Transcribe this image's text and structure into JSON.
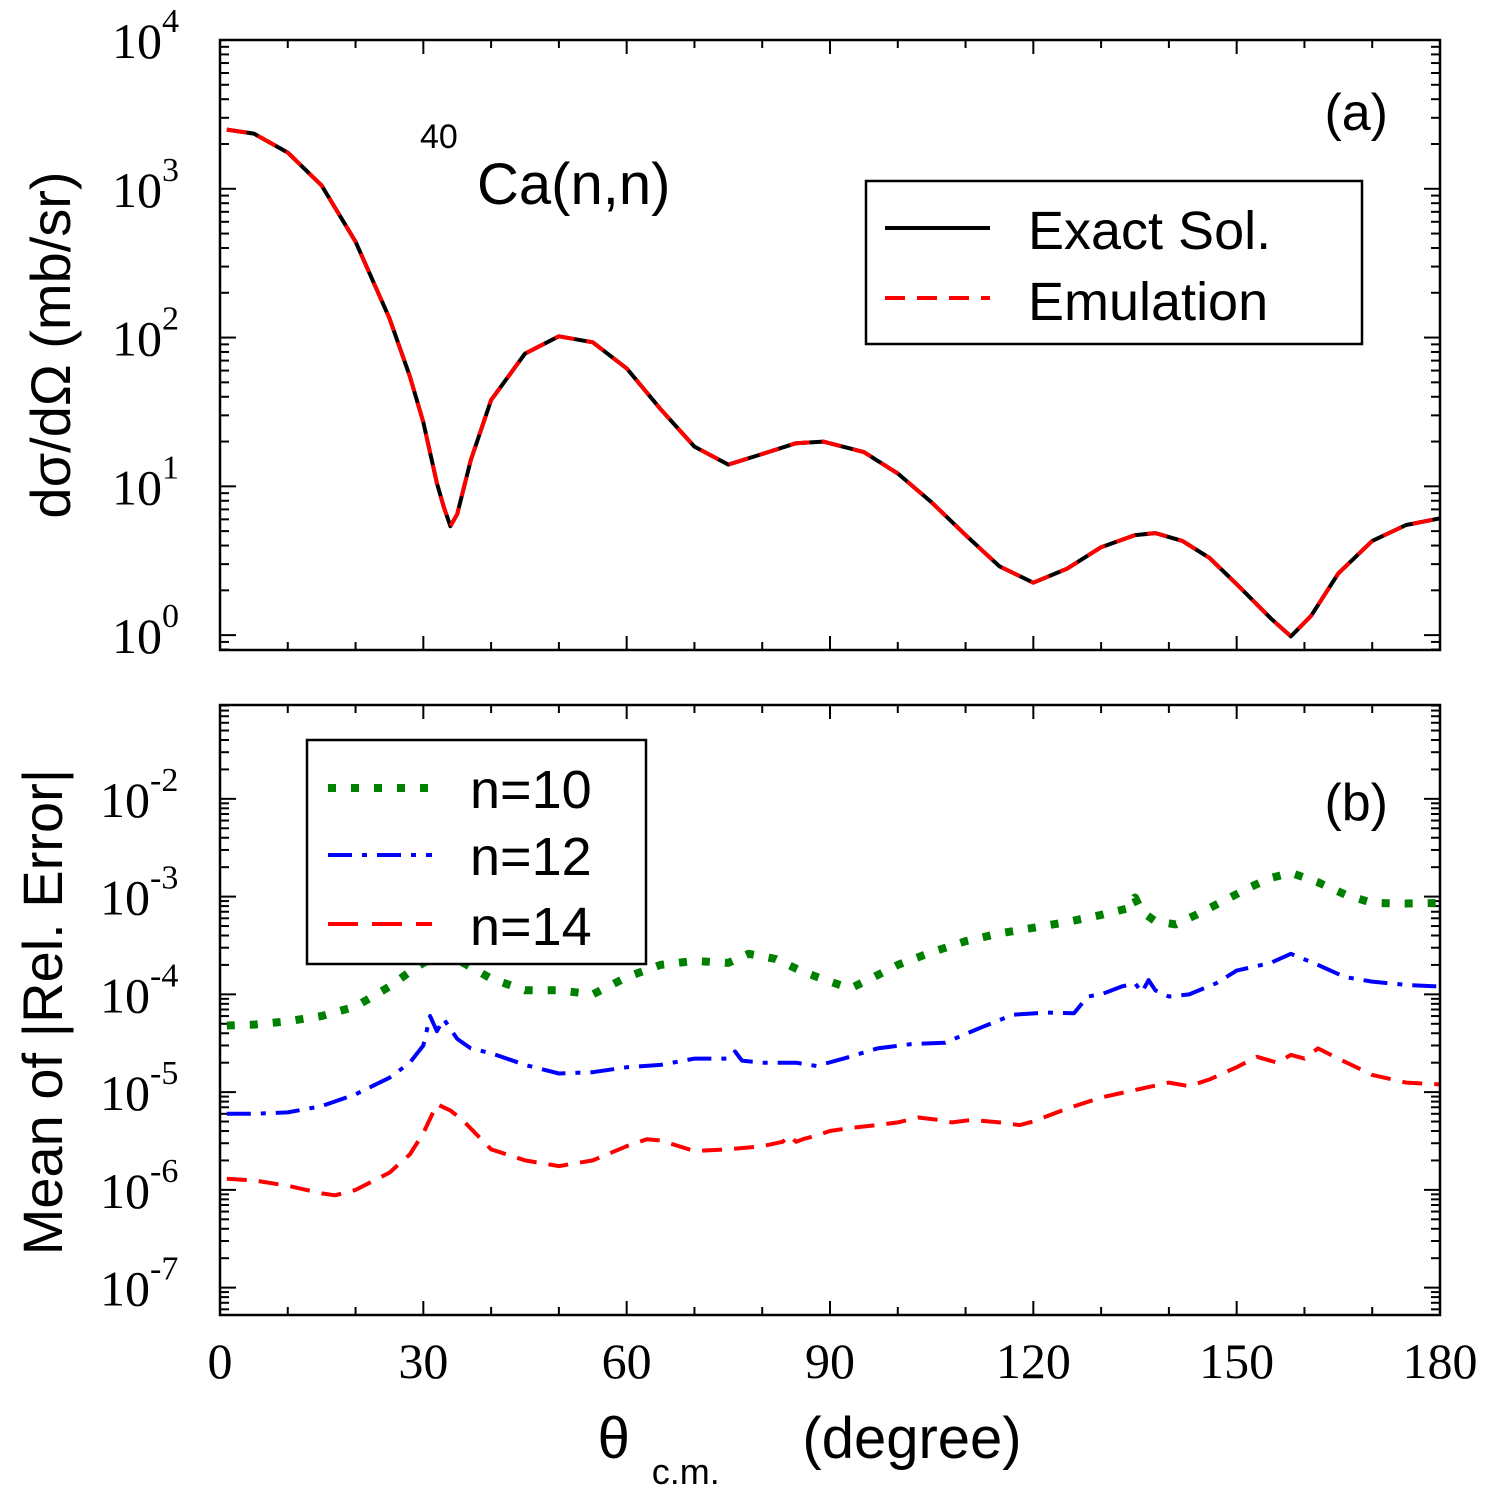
{
  "chart_data": [
    {
      "type": "line",
      "panel": "top",
      "panel_label": "(a)",
      "annotation": {
        "mass": "40",
        "reaction": "Ca(n,n)"
      },
      "ylabel": "dσ/dΩ (mb/sr)",
      "xlim": [
        0,
        180
      ],
      "ylim_log10": [
        -0.1,
        4
      ],
      "yscale": "log",
      "y_ticks": [
        {
          "base": "10",
          "exp": "0"
        },
        {
          "base": "10",
          "exp": "1"
        },
        {
          "base": "10",
          "exp": "2"
        },
        {
          "base": "10",
          "exp": "3"
        },
        {
          "base": "10",
          "exp": "4"
        }
      ],
      "legend_position": "top-right",
      "series": [
        {
          "name": "Exact Sol.",
          "color": "#000000",
          "style": "solid",
          "x": [
            1,
            5,
            10,
            15,
            20,
            25,
            28,
            30,
            32,
            33,
            34,
            35,
            37,
            40,
            45,
            50,
            55,
            60,
            65,
            70,
            75,
            80,
            85,
            89,
            95,
            100,
            105,
            110,
            115,
            120,
            125,
            130,
            135,
            138,
            142,
            146,
            150,
            155,
            158,
            161,
            165,
            170,
            175,
            180
          ],
          "y": [
            2500,
            2350,
            1750,
            1050,
            440,
            135,
            55,
            27,
            10.5,
            7.3,
            5.4,
            6.5,
            15,
            38,
            78,
            102,
            93,
            62,
            33,
            18.5,
            14,
            16.5,
            19.5,
            20,
            17,
            12.2,
            7.8,
            4.7,
            2.9,
            2.25,
            2.8,
            3.9,
            4.7,
            4.85,
            4.3,
            3.3,
            2.2,
            1.3,
            0.98,
            1.35,
            2.6,
            4.3,
            5.5,
            6.1
          ]
        },
        {
          "name": "Emulation",
          "color": "#ff0000",
          "style": "dashed",
          "x": [
            1,
            5,
            10,
            15,
            20,
            25,
            28,
            30,
            32,
            33,
            34,
            35,
            37,
            40,
            45,
            50,
            55,
            60,
            65,
            70,
            75,
            80,
            85,
            89,
            95,
            100,
            105,
            110,
            115,
            120,
            125,
            130,
            135,
            138,
            142,
            146,
            150,
            155,
            158,
            161,
            165,
            170,
            175,
            180
          ],
          "y": [
            2500,
            2350,
            1750,
            1050,
            440,
            135,
            55,
            27,
            10.5,
            7.3,
            5.4,
            6.5,
            15,
            38,
            78,
            102,
            93,
            62,
            33,
            18.5,
            14,
            16.5,
            19.5,
            20,
            17,
            12.2,
            7.8,
            4.7,
            2.9,
            2.25,
            2.8,
            3.9,
            4.7,
            4.85,
            4.3,
            3.3,
            2.2,
            1.3,
            0.98,
            1.35,
            2.6,
            4.3,
            5.5,
            6.1
          ]
        }
      ]
    },
    {
      "type": "line",
      "panel": "bottom",
      "panel_label": "(b)",
      "ylabel": "Mean of |Rel. Error|",
      "xlabel": {
        "main": "θ",
        "sub": "c.m.",
        "rest": " (degree)"
      },
      "xlim": [
        0,
        180
      ],
      "ylim_log10": [
        -7.28,
        -1.04
      ],
      "yscale": "log",
      "x_ticks": [
        "0",
        "30",
        "60",
        "90",
        "120",
        "150",
        "180"
      ],
      "y_ticks": [
        {
          "base": "10",
          "exp": "-7"
        },
        {
          "base": "10",
          "exp": "-6"
        },
        {
          "base": "10",
          "exp": "-5"
        },
        {
          "base": "10",
          "exp": "-4"
        },
        {
          "base": "10",
          "exp": "-3"
        },
        {
          "base": "10",
          "exp": "-2"
        }
      ],
      "legend_position": "top-left",
      "series": [
        {
          "name": "n=10",
          "color": "#008000",
          "style": "dotted",
          "x": [
            1,
            5,
            10,
            15,
            20,
            25,
            28,
            30,
            32,
            34,
            37,
            40,
            45,
            50,
            55,
            60,
            65,
            70,
            75,
            78,
            82,
            86,
            90,
            93,
            96,
            100,
            105,
            110,
            115,
            120,
            125,
            130,
            134,
            135,
            136,
            138,
            141,
            144,
            148,
            152,
            155,
            158,
            162,
            166,
            170,
            175,
            180
          ],
          "y": [
            4.8e-05,
            4.9e-05,
            5.3e-05,
            6e-05,
            7.5e-05,
            0.00012,
            0.00017,
            0.00021,
            0.00024,
            0.00025,
            0.00019,
            0.000145,
            0.00011,
            0.00011,
            0.0001,
            0.00015,
            0.0002,
            0.00022,
            0.00021,
            0.00026,
            0.00023,
            0.00017,
            0.000135,
            0.000115,
            0.000145,
            0.0002,
            0.00027,
            0.00035,
            0.00042,
            0.00048,
            0.00055,
            0.00065,
            0.00076,
            0.00098,
            0.0007,
            0.00056,
            0.00052,
            0.00065,
            0.0009,
            0.00125,
            0.00155,
            0.00175,
            0.0014,
            0.00105,
            0.00086,
            0.00085,
            0.00086
          ]
        },
        {
          "name": "n=12",
          "color": "#0000ff",
          "style": "dashdot",
          "x": [
            1,
            5,
            10,
            15,
            20,
            25,
            28,
            30,
            31,
            32,
            33,
            35,
            37,
            40,
            45,
            50,
            55,
            60,
            65,
            70,
            75,
            76,
            77,
            80,
            85,
            88,
            92,
            97,
            102,
            107,
            112,
            117,
            122,
            126,
            128,
            130,
            133,
            135,
            136,
            137,
            138,
            140,
            143,
            147,
            150,
            153,
            155,
            158,
            162,
            166,
            170,
            175,
            180
          ],
          "y": [
            6e-06,
            6e-06,
            6.2e-06,
            7.2e-06,
            9.5e-06,
            1.4e-05,
            2e-05,
            3e-05,
            6e-05,
            4.2e-05,
            5.6e-05,
            3.5e-05,
            2.8e-05,
            2.5e-05,
            1.9e-05,
            1.55e-05,
            1.6e-05,
            1.8e-05,
            1.9e-05,
            2.2e-05,
            2.2e-05,
            2.6e-05,
            2.1e-05,
            2e-05,
            2e-05,
            1.85e-05,
            2.2e-05,
            2.8e-05,
            3.1e-05,
            3.2e-05,
            4.5e-05,
            6.2e-05,
            6.5e-05,
            6.4e-05,
            9.5e-05,
            0.0001,
            0.00012,
            0.00013,
            0.000105,
            0.00014,
            0.00011,
            9.5e-05,
            0.0001,
            0.00013,
            0.000175,
            0.000195,
            0.00021,
            0.00026,
            0.0002,
            0.00015,
            0.000135,
            0.000125,
            0.00012
          ]
        },
        {
          "name": "n=14",
          "color": "#ff0000",
          "style": "dashed",
          "x": [
            1,
            5,
            10,
            15,
            17,
            20,
            25,
            28,
            30,
            32,
            34,
            36,
            38,
            40,
            45,
            50,
            55,
            60,
            63,
            65,
            70,
            75,
            80,
            83,
            84,
            85,
            86,
            88,
            90,
            93,
            97,
            100,
            103,
            106,
            108,
            111,
            115,
            118,
            120,
            125,
            130,
            135,
            140,
            143,
            146,
            150,
            153,
            156,
            158,
            160,
            162,
            165,
            170,
            175,
            180
          ],
          "y": [
            1.3e-06,
            1.25e-06,
            1.1e-06,
            9.2e-07,
            8.8e-07,
            1e-06,
            1.5e-06,
            2.3e-06,
            3.8e-06,
            7.5e-06,
            6.5e-06,
            5e-06,
            3.6e-06,
            2.6e-06,
            2e-06,
            1.75e-06,
            2e-06,
            2.8e-06,
            3.3e-06,
            3.2e-06,
            2.5e-06,
            2.6e-06,
            2.8e-06,
            3.1e-06,
            3.6e-06,
            3.1e-06,
            3.3e-06,
            3.6e-06,
            4e-06,
            4.3e-06,
            4.6e-06,
            4.9e-06,
            5.5e-06,
            5.2e-06,
            4.9e-06,
            5.2e-06,
            4.9e-06,
            4.6e-06,
            5e-06,
            6.8e-06,
            8.8e-06,
            1.05e-05,
            1.25e-05,
            1.15e-05,
            1.35e-05,
            1.8e-05,
            2.3e-05,
            2e-05,
            2.4e-05,
            2.2e-05,
            2.8e-05,
            2.2e-05,
            1.5e-05,
            1.25e-05,
            1.2e-05
          ]
        }
      ]
    }
  ]
}
